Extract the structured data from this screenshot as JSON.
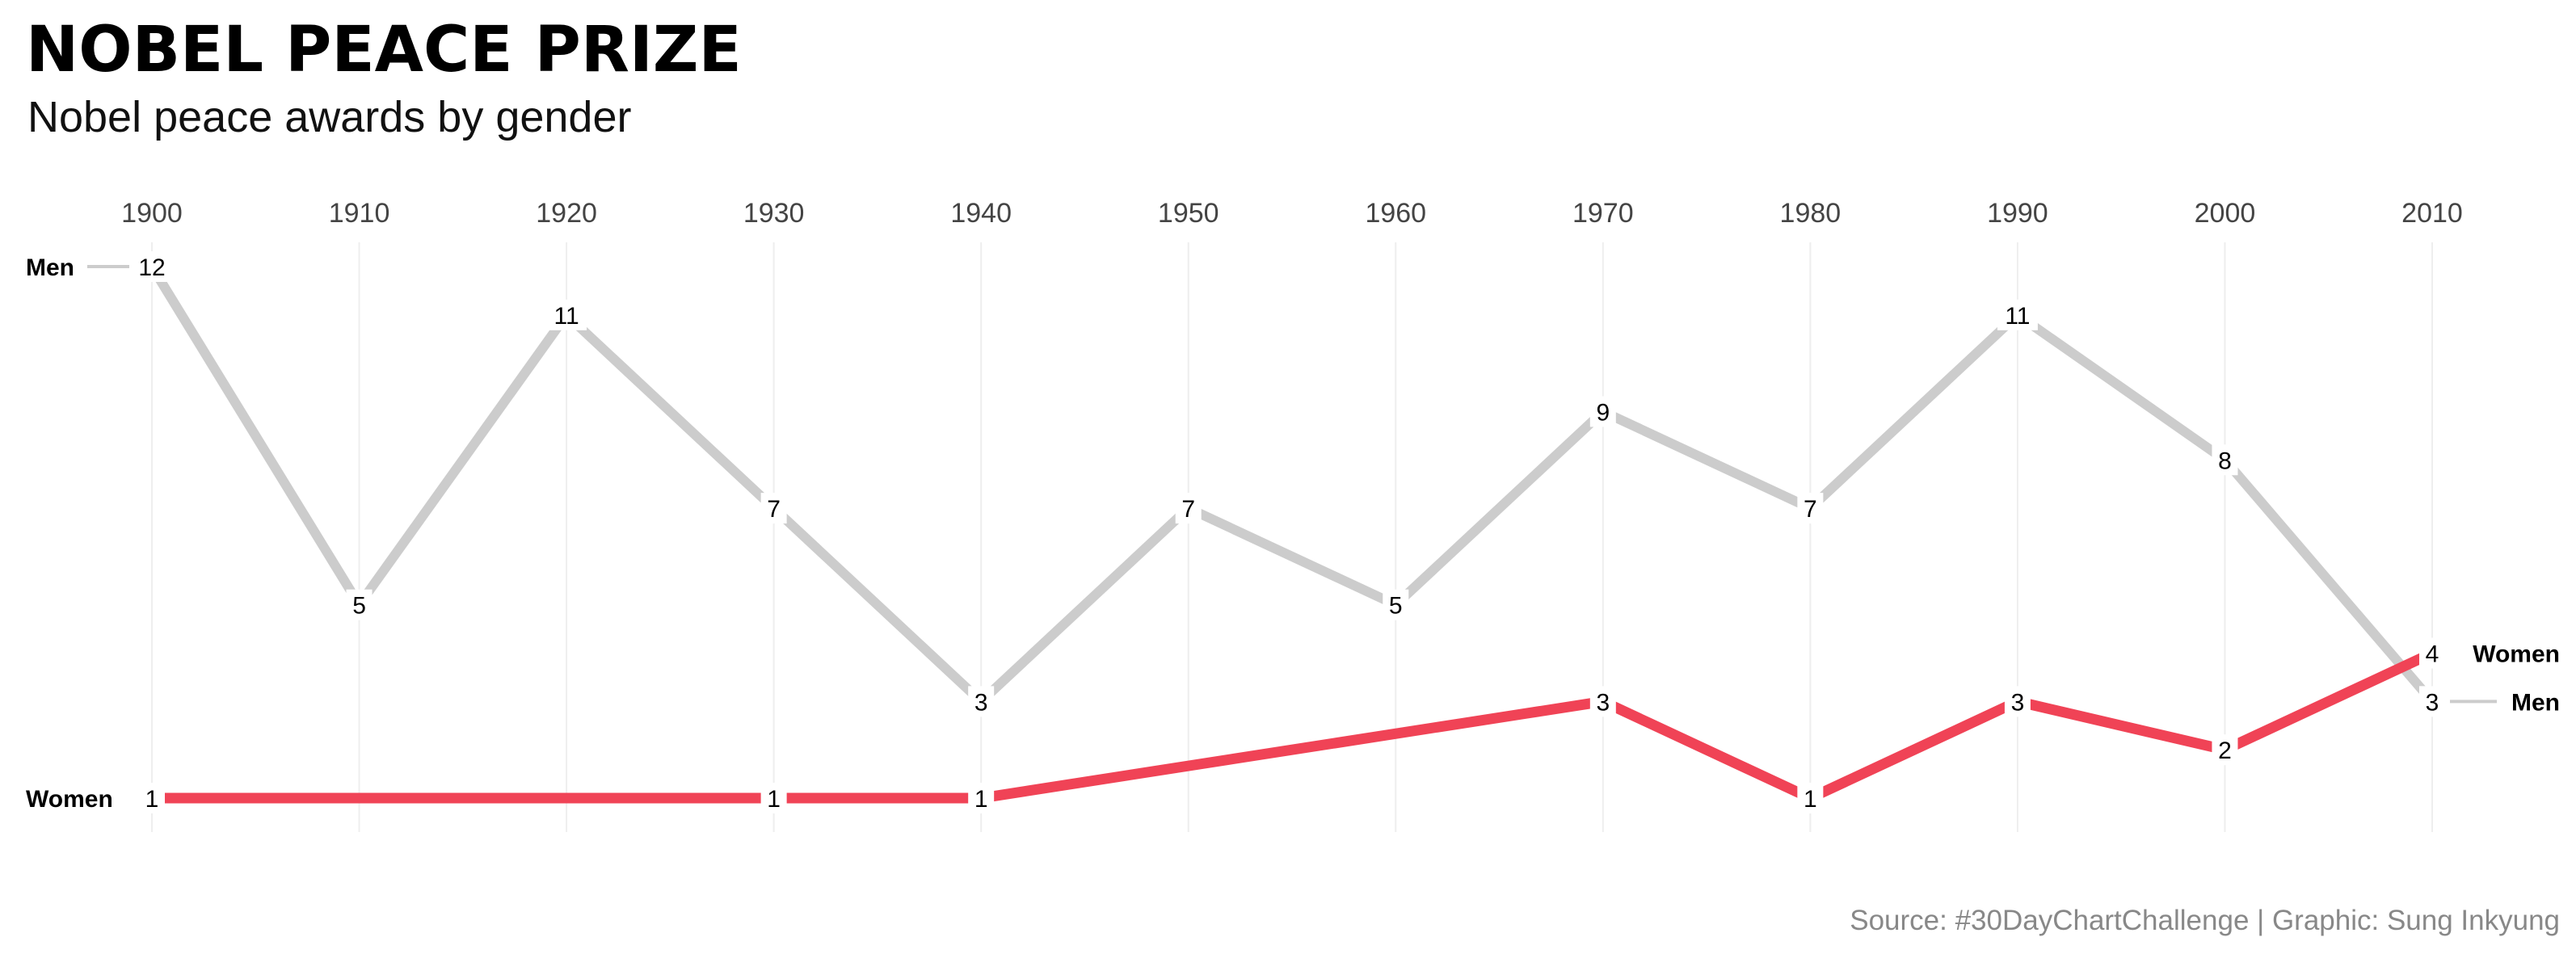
{
  "header": {
    "title": "NOBEL PEACE PRIZE",
    "subtitle": "Nobel peace awards by gender"
  },
  "caption": "Source: #30DayChartChallenge | Graphic: Sung Inkyung",
  "colors": {
    "men": "#cccccc",
    "women": "#f04356",
    "grid": "#eeeeee",
    "background": "#ffffff"
  },
  "chart_data": {
    "type": "line",
    "title": "NOBEL PEACE PRIZE",
    "subtitle": "Nobel peace awards by gender",
    "x_ticks": [
      1900,
      1910,
      1920,
      1930,
      1940,
      1950,
      1960,
      1970,
      1980,
      1990,
      2000,
      2010
    ],
    "xlim": [
      1900,
      2010
    ],
    "ylim": [
      1,
      12
    ],
    "x_axis_position": "top",
    "grid": "vertical",
    "legend": "direct labels at line ends",
    "series": [
      {
        "name": "Men",
        "color": "#cccccc",
        "x": [
          1900,
          1910,
          1920,
          1930,
          1940,
          1950,
          1960,
          1970,
          1980,
          1990,
          2000,
          2010
        ],
        "values": [
          12,
          5,
          11,
          7,
          3,
          7,
          5,
          9,
          7,
          11,
          8,
          3
        ]
      },
      {
        "name": "Women",
        "color": "#f04356",
        "x": [
          1900,
          1930,
          1940,
          1970,
          1980,
          1990,
          2000,
          2010
        ],
        "values": [
          1,
          1,
          1,
          3,
          1,
          3,
          2,
          4
        ]
      }
    ]
  }
}
